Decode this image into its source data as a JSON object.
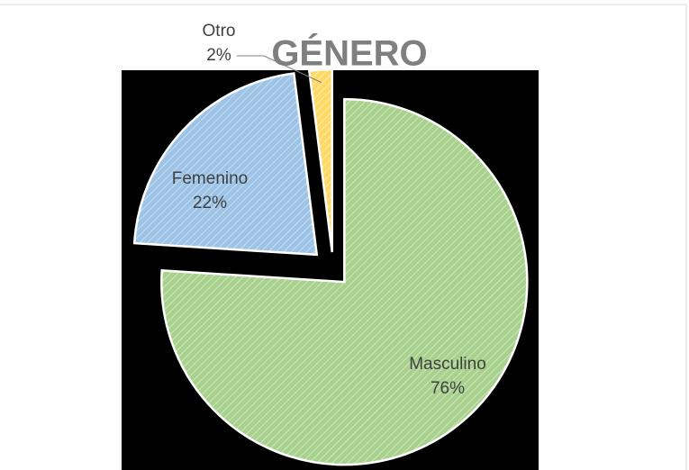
{
  "chart_data": {
    "type": "pie",
    "title": "GÉNERO",
    "categories": [
      "Masculino",
      "Femenino",
      "Otro"
    ],
    "values": [
      76,
      22,
      2
    ],
    "value_labels": [
      "76%",
      "22%",
      "2%"
    ],
    "colors": [
      "#a9d18e",
      "#9dc3e6",
      "#ffd966"
    ]
  }
}
